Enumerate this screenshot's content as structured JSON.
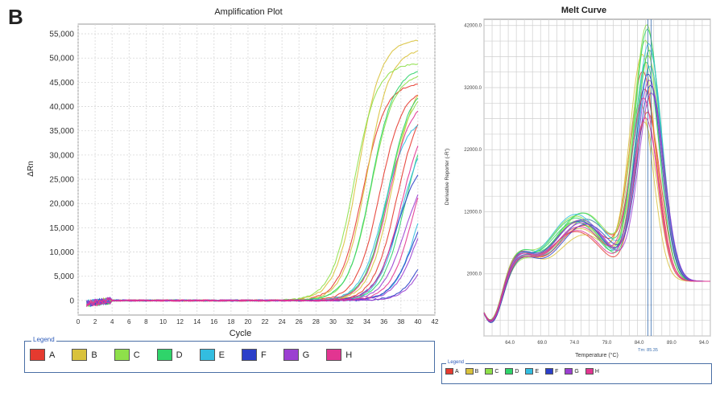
{
  "panel_label": "B",
  "series_colors": {
    "A": "#e53a2f",
    "B": "#d9c23c",
    "C": "#8ee04a",
    "D": "#2fd46a",
    "E": "#33bde0",
    "F": "#2b3fc9",
    "G": "#9b3fd1",
    "H": "#e23591"
  },
  "chart_data": [
    {
      "type": "line",
      "title": "Amplification Plot",
      "xlabel": "Cycle",
      "ylabel": "ΔRn",
      "xlim": [
        0,
        42
      ],
      "ylim": [
        -3000,
        57000
      ],
      "x_ticks": [
        0,
        2,
        4,
        6,
        8,
        10,
        12,
        14,
        16,
        18,
        20,
        22,
        24,
        26,
        28,
        30,
        32,
        34,
        36,
        38,
        40,
        42
      ],
      "y_ticks": [
        0,
        5000,
        10000,
        15000,
        20000,
        25000,
        30000,
        35000,
        40000,
        45000,
        50000,
        55000
      ],
      "y_tick_labels": [
        "0",
        "5,000",
        "10,000",
        "15,000",
        "20,000",
        "25,000",
        "30,000",
        "35,000",
        "40,000",
        "45,000",
        "50,000",
        "55,000"
      ],
      "grid": true,
      "legend_title": "Legend",
      "legend": [
        "A",
        "B",
        "C",
        "D",
        "E",
        "F",
        "G",
        "H"
      ],
      "series": [
        {
          "name": "A",
          "curves": [
            {
              "ct": 30.5,
              "plateau": 45000
            },
            {
              "ct": 32.5,
              "plateau": 44000
            },
            {
              "ct": 34.5,
              "plateau": 42000
            }
          ]
        },
        {
          "name": "B",
          "curves": [
            {
              "ct": 30.0,
              "plateau": 54000
            },
            {
              "ct": 31.0,
              "plateau": 52000
            },
            {
              "ct": 34.0,
              "plateau": 47000
            }
          ]
        },
        {
          "name": "C",
          "curves": [
            {
              "ct": 29.5,
              "plateau": 49000
            },
            {
              "ct": 31.5,
              "plateau": 47000
            },
            {
              "ct": 33.5,
              "plateau": 44000
            }
          ]
        },
        {
          "name": "D",
          "curves": [
            {
              "ct": 31.5,
              "plateau": 48000
            },
            {
              "ct": 33.5,
              "plateau": 45000
            },
            {
              "ct": 35.5,
              "plateau": 40000
            }
          ]
        },
        {
          "name": "E",
          "curves": [
            {
              "ct": 33.0,
              "plateau": 38000
            },
            {
              "ct": 35.0,
              "plateau": 36000
            },
            {
              "ct": 37.0,
              "plateau": 32000
            }
          ]
        },
        {
          "name": "F",
          "curves": [
            {
              "ct": 34.5,
              "plateau": 30000
            },
            {
              "ct": 36.5,
              "plateau": 24000
            },
            {
              "ct": 38.0,
              "plateau": 20000
            }
          ]
        },
        {
          "name": "G",
          "curves": [
            {
              "ct": 35.5,
              "plateau": 29000
            },
            {
              "ct": 37.0,
              "plateau": 26000
            },
            {
              "ct": 38.5,
              "plateau": 22000
            }
          ]
        },
        {
          "name": "H",
          "curves": [
            {
              "ct": 33.5,
              "plateau": 42000
            },
            {
              "ct": 35.0,
              "plateau": 39000
            },
            {
              "ct": 36.5,
              "plateau": 36000
            }
          ]
        }
      ]
    },
    {
      "type": "line",
      "title": "Melt Curve",
      "xlabel": "Temperature (°C)",
      "ylabel": "Derivative Reporter (-R')",
      "xlim": [
        60,
        95
      ],
      "ylim": [
        -8000,
        43000
      ],
      "x_ticks": [
        64.0,
        69.0,
        74.0,
        79.0,
        84.0,
        89.0,
        94.0
      ],
      "x_tick_labels": [
        "64.0",
        "69.0",
        "74.0",
        "79.0",
        "84.0",
        "89.0",
        "94.0"
      ],
      "y_ticks": [
        2000,
        12000,
        22000,
        32000,
        42000
      ],
      "y_tick_labels": [
        "2000.0",
        "12000.0",
        "22000.0",
        "32000.0",
        "42000.0"
      ],
      "grid": true,
      "tm_label": "Tm: 85.35",
      "tm_value": 85.35,
      "legend_title": "Legend",
      "legend": [
        "A",
        "B",
        "C",
        "D",
        "E",
        "F",
        "G",
        "H"
      ],
      "series": [
        {
          "name": "A",
          "curves": [
            {
              "peak": 33000,
              "tm": 84.6,
              "shoulder": 9000
            },
            {
              "peak": 30000,
              "tm": 84.9,
              "shoulder": 10000
            },
            {
              "peak": 27000,
              "tm": 85.3,
              "shoulder": 8000
            }
          ]
        },
        {
          "name": "B",
          "curves": [
            {
              "peak": 36000,
              "tm": 84.5,
              "shoulder": 9500
            },
            {
              "peak": 28000,
              "tm": 84.2,
              "shoulder": 8500
            },
            {
              "peak": 25000,
              "tm": 84.8,
              "shoulder": 7500
            }
          ]
        },
        {
          "name": "C",
          "curves": [
            {
              "peak": 41000,
              "tm": 85.2,
              "shoulder": 10500
            },
            {
              "peak": 38000,
              "tm": 85.0,
              "shoulder": 11000
            },
            {
              "peak": 36000,
              "tm": 85.4,
              "shoulder": 9800
            }
          ]
        },
        {
          "name": "D",
          "curves": [
            {
              "peak": 40000,
              "tm": 85.3,
              "shoulder": 11000
            },
            {
              "peak": 37000,
              "tm": 85.6,
              "shoulder": 10200
            },
            {
              "peak": 35000,
              "tm": 85.1,
              "shoulder": 9600
            }
          ]
        },
        {
          "name": "E",
          "curves": [
            {
              "peak": 38000,
              "tm": 85.5,
              "shoulder": 10800
            },
            {
              "peak": 34000,
              "tm": 85.7,
              "shoulder": 10000
            }
          ]
        },
        {
          "name": "F",
          "curves": [
            {
              "peak": 33000,
              "tm": 85.4,
              "shoulder": 9700
            },
            {
              "peak": 31000,
              "tm": 85.8,
              "shoulder": 9200
            }
          ]
        },
        {
          "name": "G",
          "curves": [
            {
              "peak": 32000,
              "tm": 85.6,
              "shoulder": 9900
            },
            {
              "peak": 30000,
              "tm": 85.9,
              "shoulder": 9400
            }
          ]
        },
        {
          "name": "H",
          "curves": [
            {
              "peak": 29000,
              "tm": 84.7,
              "shoulder": 8800
            },
            {
              "peak": 26000,
              "tm": 85.0,
              "shoulder": 8200
            }
          ]
        }
      ]
    }
  ]
}
